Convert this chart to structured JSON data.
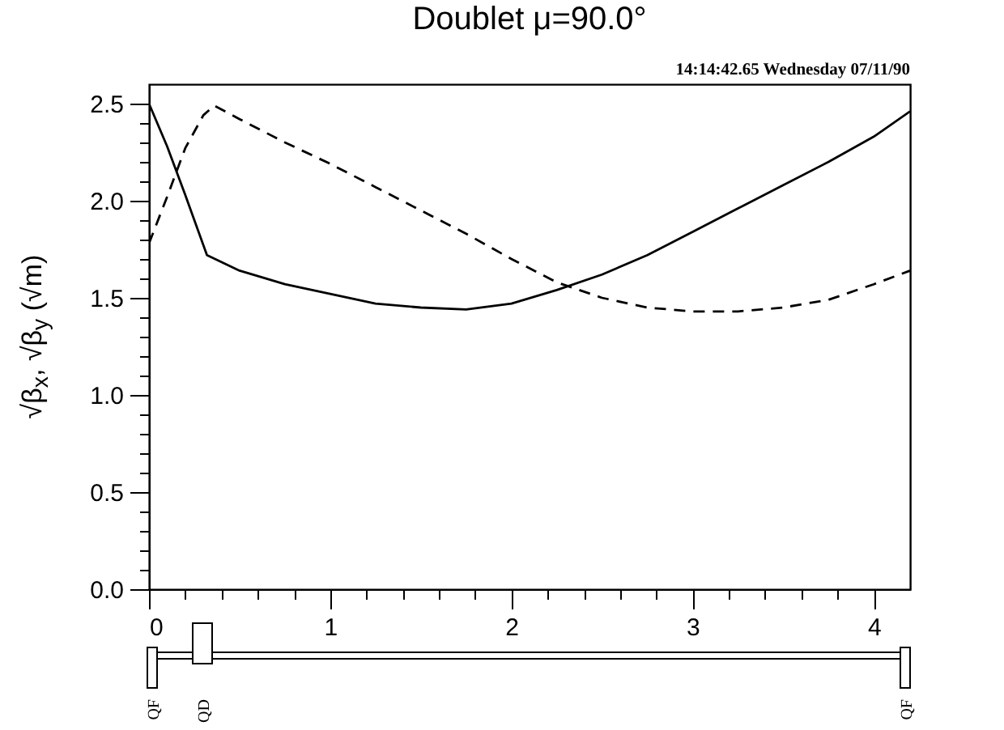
{
  "chart_data": {
    "type": "line",
    "title": "Doublet μ=90.0°",
    "ylabel": "√β$_{x}$, √β$_{y}$ (√m)",
    "annotations": [
      "14:14:42.65 Wednesday 07/11/90",
      "QF",
      "QD",
      "QF"
    ],
    "xlim": [
      0,
      4.2
    ],
    "ylim": [
      0,
      2.6
    ],
    "xticks": [
      0,
      {
        "value": 0.2,
        "label": null
      },
      {
        "value": 0.4,
        "label": null
      },
      {
        "value": 0.6,
        "label": null
      },
      {
        "value": 0.8,
        "label": null
      },
      1,
      {
        "value": 1.2,
        "label": null
      },
      {
        "value": 1.4,
        "label": null
      },
      {
        "value": 1.6,
        "label": null
      },
      {
        "value": 1.8,
        "label": null
      },
      2,
      {
        "value": 2.2,
        "label": null
      },
      {
        "value": 2.4,
        "label": null
      },
      {
        "value": 2.6,
        "label": null
      },
      {
        "value": 2.8,
        "label": null
      },
      3,
      {
        "value": 3.2,
        "label": null
      },
      {
        "value": 3.4,
        "label": null
      },
      {
        "value": 3.6,
        "label": null
      },
      {
        "value": 3.8,
        "label": null
      },
      4
    ],
    "yticks": [
      {
        "value": 0,
        "label": "0.0"
      },
      {
        "value": 0.1,
        "label": null
      },
      {
        "value": 0.2,
        "label": null
      },
      {
        "value": 0.3,
        "label": null
      },
      {
        "value": 0.4,
        "label": null
      },
      0.5,
      {
        "value": 0.6,
        "label": null
      },
      {
        "value": 0.7,
        "label": null
      },
      {
        "value": 0.8,
        "label": null
      },
      {
        "value": 0.9,
        "label": null
      },
      {
        "value": 1,
        "label": "1.0"
      },
      {
        "value": 1.1,
        "label": null
      },
      {
        "value": 1.2,
        "label": null
      },
      {
        "value": 1.3,
        "label": null
      },
      {
        "value": 1.4,
        "label": null
      },
      1.5,
      {
        "value": 1.6,
        "label": null
      },
      {
        "value": 1.7,
        "label": null
      },
      {
        "value": 1.8,
        "label": null
      },
      {
        "value": 1.9,
        "label": null
      },
      {
        "value": 2,
        "label": "2.0"
      },
      {
        "value": 2.1,
        "label": null
      },
      {
        "value": 2.2,
        "label": null
      },
      {
        "value": 2.3,
        "label": null
      },
      {
        "value": 2.4,
        "label": null
      },
      2.5
    ],
    "grid": false,
    "legend": false,
    "marker": "none",
    "series": [
      {
        "color": "#000000",
        "line_style": "solid",
        "x": [
          0,
          0.1,
          0.2,
          0.32,
          0.5,
          0.75,
          1.0,
          1.25,
          1.5,
          1.75,
          2.0,
          2.25,
          2.5,
          2.75,
          3.0,
          3.25,
          3.5,
          3.75,
          4.0,
          4.2
        ],
        "values": [
          2.5,
          2.28,
          2.03,
          1.72,
          1.64,
          1.57,
          1.52,
          1.47,
          1.45,
          1.44,
          1.47,
          1.54,
          1.62,
          1.72,
          1.84,
          1.96,
          2.08,
          2.2,
          2.33,
          2.46
        ]
      },
      {
        "color": "#000000",
        "line_style": "dashed",
        "x": [
          0,
          0.1,
          0.2,
          0.3,
          0.36,
          0.5,
          0.75,
          1.0,
          1.25,
          1.5,
          1.75,
          2.0,
          2.25,
          2.5,
          2.75,
          3.0,
          3.25,
          3.5,
          3.75,
          4.0,
          4.2
        ],
        "values": [
          1.78,
          2.02,
          2.27,
          2.44,
          2.49,
          2.42,
          2.3,
          2.19,
          2.07,
          1.95,
          1.83,
          1.7,
          1.58,
          1.5,
          1.45,
          1.43,
          1.43,
          1.45,
          1.49,
          1.57,
          1.64
        ]
      }
    ]
  }
}
